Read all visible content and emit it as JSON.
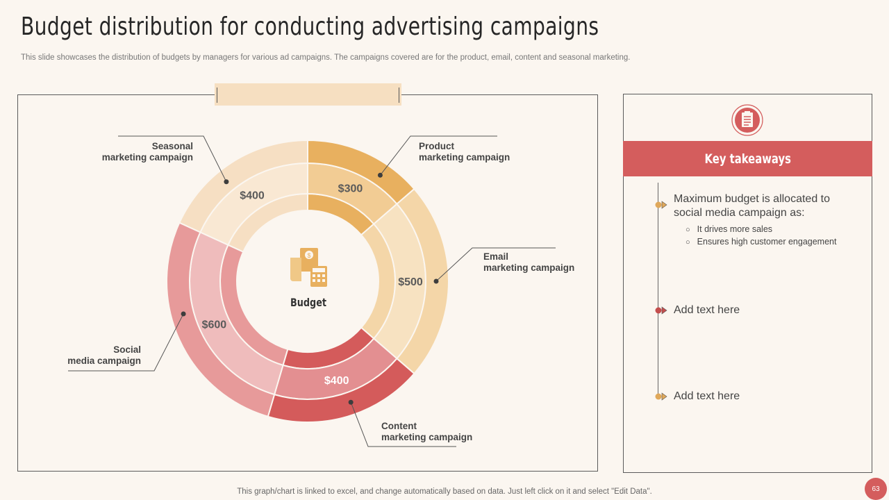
{
  "header": {
    "title": "Budget distribution for conducting advertising campaigns",
    "subtitle": "This slide showcases the distribution of budgets by managers for various ad campaigns. The campaigns covered are for the product, email, content and seasonal marketing."
  },
  "chart_data": {
    "type": "pie",
    "center_label": "Budget",
    "categories": [
      "Product\nmarketing campaign",
      "Email\nmarketing campaign",
      "Content\nmarketing campaign",
      "Social\nmedia campaign",
      "Seasonal\nmarketing campaign"
    ],
    "values": [
      300,
      500,
      400,
      600,
      400
    ],
    "value_labels": [
      "$300",
      "$500",
      "$400",
      "$600",
      "$400"
    ],
    "colors": {
      "outer": [
        "#e8b05f",
        "#f4d6a8",
        "#d45b5b",
        "#e79a9a",
        "#f6dfc3"
      ],
      "middle": [
        "#f2cc94",
        "#f7e2c1",
        "#e38f91",
        "#efbcbc",
        "#f9e8d3"
      ],
      "inner": [
        "#e8b05f",
        "#f4d6a8",
        "#d45b5b",
        "#e79a9a",
        "#f6dfc3"
      ]
    }
  },
  "takeaways": {
    "heading": "Key takeaways",
    "icon": "clipboard-checklist-icon",
    "points": [
      {
        "text": "Maximum budget is allocated to social media campaign as:",
        "color": "#e0a85a"
      },
      {
        "text": "Add text here",
        "color": "#c44e4e"
      },
      {
        "text": "Add text here",
        "color": "#e0a85a"
      }
    ],
    "bullets": [
      "It drives  more sales",
      "Ensures high customer engagement"
    ]
  },
  "footer": {
    "note": "This graph/chart is linked to excel,  and change automatically based on data. Just left click on it and select \"Edit Data\".",
    "page_number": "63"
  }
}
